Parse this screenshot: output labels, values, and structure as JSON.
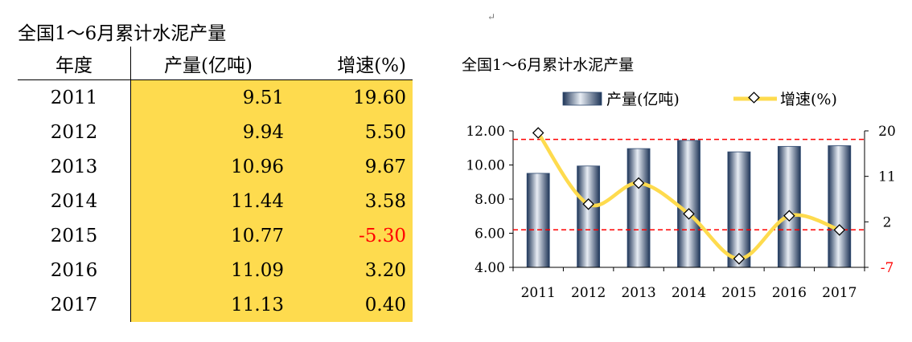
{
  "table": {
    "title": "全国1～6月累计水泥产量",
    "headers": [
      "年度",
      "产量(亿吨)",
      "增速(%)"
    ],
    "rows": [
      {
        "year": "2011",
        "production": "9.51",
        "growth": "19.60"
      },
      {
        "year": "2012",
        "production": "9.94",
        "growth": "5.50"
      },
      {
        "year": "2013",
        "production": "10.96",
        "growth": "9.67"
      },
      {
        "year": "2014",
        "production": "11.44",
        "growth": "3.58"
      },
      {
        "year": "2015",
        "production": "10.77",
        "growth": "-5.30"
      },
      {
        "year": "2016",
        "production": "11.09",
        "growth": "3.20"
      },
      {
        "year": "2017",
        "production": "11.13",
        "growth": "0.40"
      }
    ]
  },
  "stray_mark": "↵",
  "colors": {
    "table_fill": "#fedb4e",
    "bar": "#2e4970",
    "line": "#fedb4e",
    "reference_line": "#ff0000",
    "negative_text": "#ff0000"
  },
  "chart_data": {
    "type": "bar",
    "title": "全国1～6月累计水泥产量",
    "categories": [
      "2011",
      "2012",
      "2013",
      "2014",
      "2015",
      "2016",
      "2017"
    ],
    "series": [
      {
        "name": "产量(亿吨)",
        "type": "bar",
        "axis": "left",
        "values": [
          9.51,
          9.94,
          10.96,
          11.44,
          10.77,
          11.09,
          11.13
        ]
      },
      {
        "name": "增速(%)",
        "type": "line",
        "axis": "right",
        "values": [
          19.6,
          5.5,
          9.67,
          3.58,
          -5.3,
          3.2,
          0.4
        ]
      }
    ],
    "y_left": {
      "min": 4,
      "max": 12,
      "ticks": [
        "12.00",
        "10.00",
        "8.00",
        "6.00",
        "4.00"
      ]
    },
    "y_right": {
      "min": -7,
      "max": 20,
      "ticks": [
        "20",
        "11",
        "2",
        "-7"
      ]
    },
    "reference_lines_left": [
      11.5,
      6.2
    ],
    "legend_position": "top",
    "grid": false
  }
}
